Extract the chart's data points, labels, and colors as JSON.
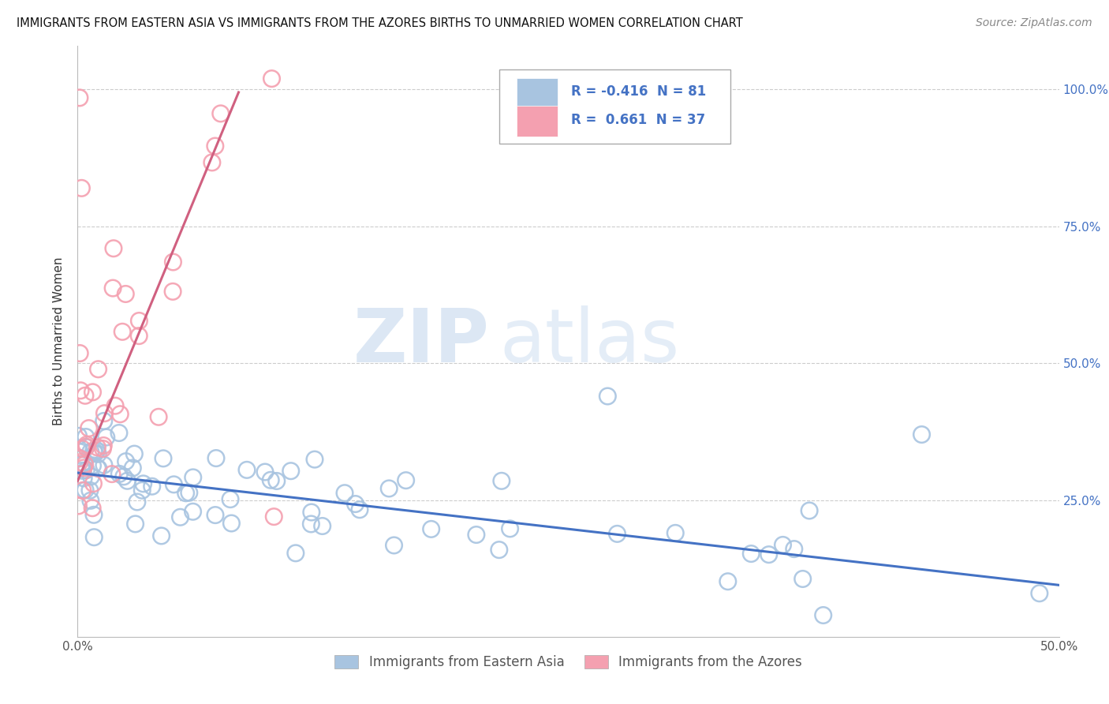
{
  "title": "IMMIGRANTS FROM EASTERN ASIA VS IMMIGRANTS FROM THE AZORES BIRTHS TO UNMARRIED WOMEN CORRELATION CHART",
  "source": "Source: ZipAtlas.com",
  "ylabel": "Births to Unmarried Women",
  "xlabel_legend1": "Immigrants from Eastern Asia",
  "xlabel_legend2": "Immigrants from the Azores",
  "xmin": 0.0,
  "xmax": 0.5,
  "ymin": 0.0,
  "ymax": 1.05,
  "r_blue": -0.416,
  "n_blue": 81,
  "r_pink": 0.661,
  "n_pink": 37,
  "color_blue": "#a8c4e0",
  "color_pink": "#f4a0b0",
  "color_blue_line": "#4472c4",
  "color_pink_line": "#d06080",
  "watermark_zip": "ZIP",
  "watermark_atlas": "atlas",
  "blue_line_x0": 0.0,
  "blue_line_x1": 0.5,
  "blue_line_y0": 0.3,
  "blue_line_y1": 0.095,
  "pink_line_x0": 0.0,
  "pink_line_x1": 0.082,
  "pink_line_y0": 0.285,
  "pink_line_y1": 0.995
}
